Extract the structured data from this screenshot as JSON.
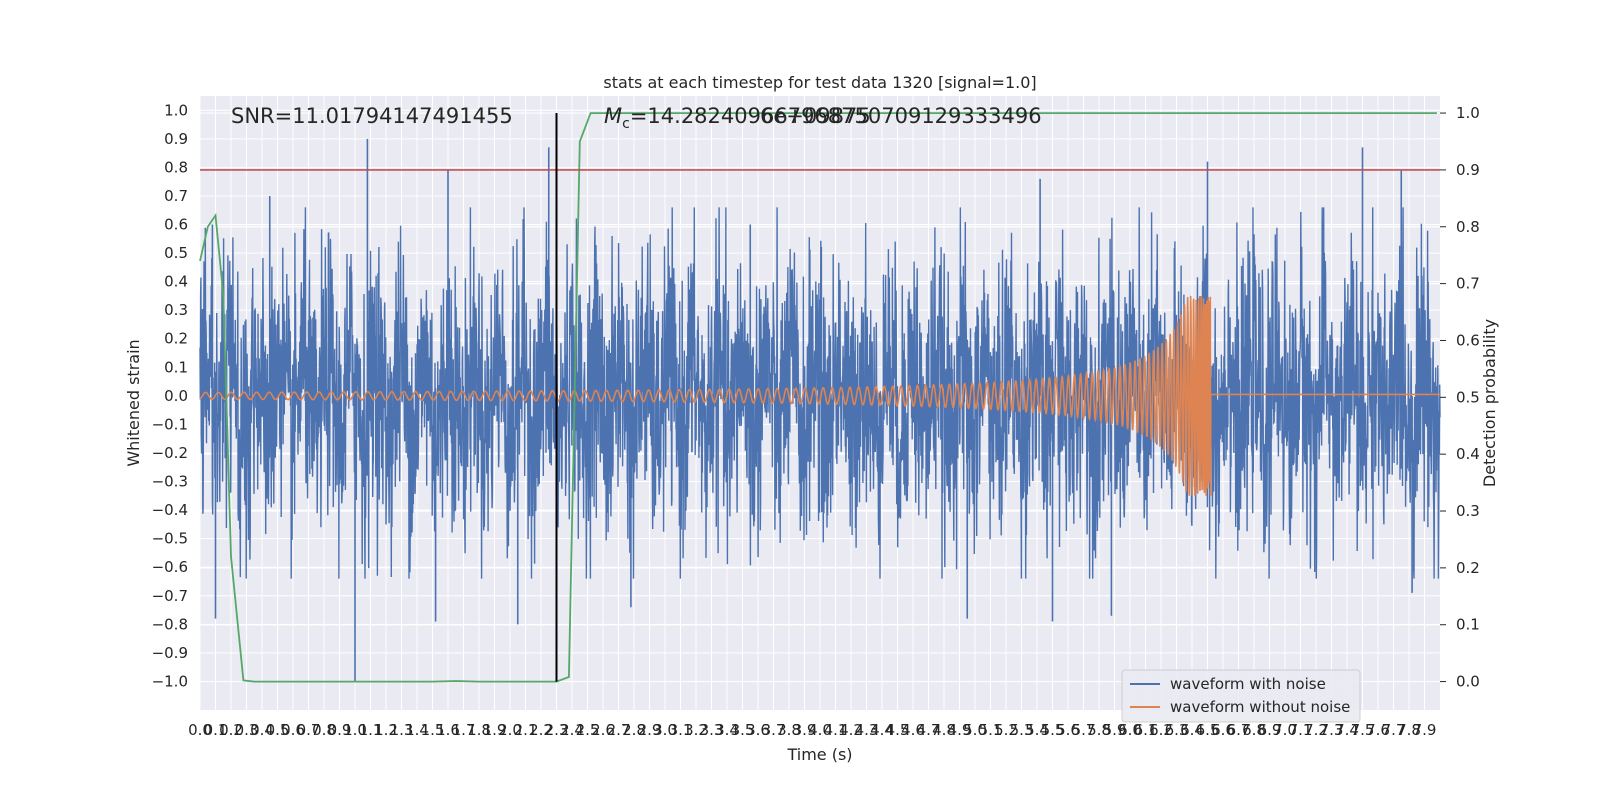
{
  "chart_data": {
    "type": "line",
    "title": "stats at each timestep for test data 1320 [signal=1.0]",
    "xlabel": "Time (s)",
    "ylabel": "Whitened strain",
    "ylabel_right": "Detection probability",
    "xlim": [
      0.0,
      8.0
    ],
    "ylim": [
      -1.1,
      1.05
    ],
    "ylim_right": [
      -0.05,
      1.03
    ],
    "x_ticks": [
      "0.0",
      "0.1",
      "0.2",
      "0.3",
      "0.4",
      "0.5",
      "0.6",
      "0.7",
      "0.8",
      "0.9",
      "1.0",
      "1.1",
      "1.2",
      "1.3",
      "1.4",
      "1.5",
      "1.6",
      "1.7",
      "1.8",
      "1.9",
      "2.0",
      "2.1",
      "2.2",
      "2.3",
      "2.4",
      "2.5",
      "2.6",
      "2.7",
      "2.8",
      "2.9",
      "3.0",
      "3.1",
      "3.2",
      "3.3",
      "3.4",
      "3.5",
      "3.6",
      "3.7",
      "3.8",
      "3.9",
      "4.0",
      "4.1",
      "4.2",
      "4.3",
      "4.4",
      "4.5",
      "4.6",
      "4.7",
      "4.8",
      "4.9",
      "5.0",
      "5.1",
      "5.2",
      "5.3",
      "5.4",
      "5.5",
      "5.6",
      "5.7",
      "5.8",
      "5.9",
      "6.0",
      "6.1",
      "6.2",
      "6.3",
      "6.4",
      "6.5",
      "6.6",
      "6.7",
      "6.8",
      "6.9",
      "7.0",
      "7.1",
      "7.2",
      "7.3",
      "7.4",
      "7.5",
      "7.6",
      "7.7",
      "7.8",
      "7.9"
    ],
    "y_ticks_left": [
      "1.0",
      "0.9",
      "0.8",
      "0.7",
      "0.6",
      "0.5",
      "0.4",
      "0.3",
      "0.2",
      "0.1",
      "0.0",
      "-0.1",
      "-0.2",
      "-0.3",
      "-0.4",
      "-0.5",
      "-0.6",
      "-0.7",
      "-0.8",
      "-0.9",
      "-1.0"
    ],
    "y_ticks_right": [
      "1.0",
      "0.9",
      "0.8",
      "0.7",
      "0.6",
      "0.5",
      "0.4",
      "0.3",
      "0.2",
      "0.1",
      "0.0"
    ],
    "annotations": {
      "snr": "SNR=11.01794147491455",
      "mc_prefix": "M",
      "mc_sub": "c",
      "mc_value": "=14.282409667968750709129333496",
      "mc_overlap": "6e+09875"
    },
    "series": [
      {
        "name": "waveform with noise",
        "color": "#4c72b0",
        "noise_envelope": 0.45,
        "peaks": [
          {
            "x": 0.08,
            "y": 0.6
          },
          {
            "x": 0.1,
            "y": -0.78
          },
          {
            "x": 0.45,
            "y": 0.7
          },
          {
            "x": 1.0,
            "y": -1.0
          },
          {
            "x": 1.08,
            "y": 0.9
          },
          {
            "x": 1.6,
            "y": 0.79
          },
          {
            "x": 1.52,
            "y": -0.79
          },
          {
            "x": 2.05,
            "y": -0.8
          },
          {
            "x": 2.25,
            "y": 0.87
          },
          {
            "x": 2.3,
            "y": 0.9
          },
          {
            "x": 2.78,
            "y": -0.74
          },
          {
            "x": 3.55,
            "y": 0.6
          },
          {
            "x": 4.95,
            "y": -0.78
          },
          {
            "x": 5.42,
            "y": 0.76
          },
          {
            "x": 5.5,
            "y": -0.79
          },
          {
            "x": 5.88,
            "y": -0.77
          },
          {
            "x": 6.5,
            "y": 0.82
          },
          {
            "x": 7.5,
            "y": 0.87
          },
          {
            "x": 7.75,
            "y": 0.79
          },
          {
            "x": 7.82,
            "y": -0.69
          }
        ]
      },
      {
        "name": "waveform without noise",
        "color": "#dd8452",
        "merger_time": 6.52,
        "start_amplitude": 0.012,
        "peak_amplitude": 0.35,
        "start_frequency_hz": 12,
        "post_merger_value": 0.005
      },
      {
        "name": "detection probability",
        "axis": "right",
        "color": "#55a868",
        "x": [
          0.0,
          0.05,
          0.1,
          0.15,
          0.2,
          0.28,
          0.35,
          0.5,
          0.8,
          1.0,
          1.2,
          1.5,
          1.65,
          1.8,
          2.0,
          2.2,
          2.25,
          2.3,
          2.38,
          2.45,
          2.52,
          2.6,
          3.0,
          4.0,
          5.0,
          6.0,
          7.0,
          7.98
        ],
        "y": [
          0.74,
          0.8,
          0.82,
          0.68,
          0.22,
          0.002,
          0.0,
          0.0,
          0.0,
          0.0,
          0.0,
          0.0,
          0.001,
          0.0,
          0.0,
          0.0,
          0.0,
          0.0,
          0.008,
          0.95,
          1.0,
          1.0,
          1.0,
          1.0,
          1.0,
          1.0,
          1.0,
          1.0
        ]
      }
    ],
    "threshold": {
      "axis": "right",
      "y": 0.9,
      "color": "#c44e52"
    },
    "detection_marker": {
      "x": 2.3,
      "color": "#000000"
    },
    "legend": {
      "placement": "lower right",
      "entries": [
        {
          "label": "waveform with noise",
          "color": "#4c72b0"
        },
        {
          "label": "waveform without noise",
          "color": "#dd8452"
        }
      ]
    },
    "grid": true,
    "style": {
      "plot_bg": "#eaeaf2",
      "grid_color": "#ffffff"
    }
  }
}
